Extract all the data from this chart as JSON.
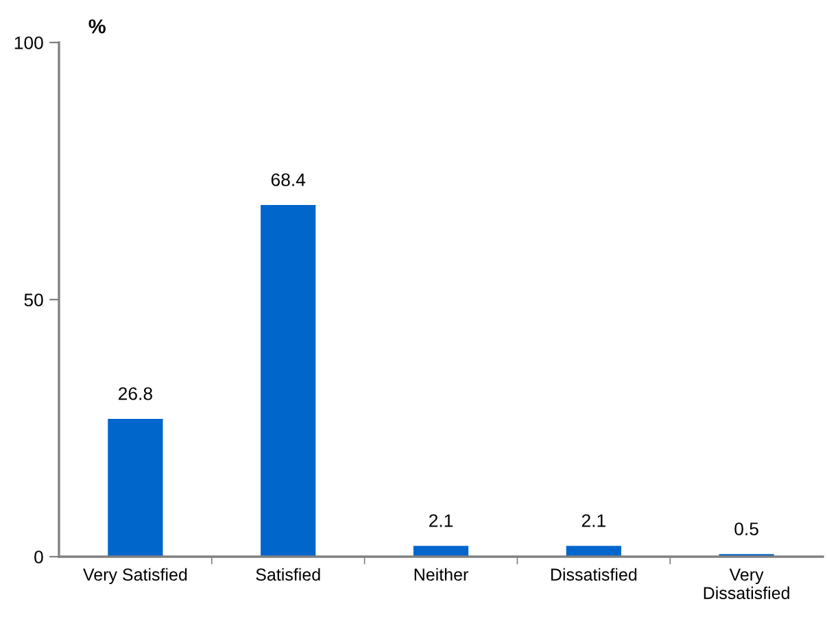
{
  "chart_data": {
    "type": "bar",
    "ylabel": "%",
    "categories": [
      "Very Satisfied",
      "Satisfied",
      "Neither",
      "Dissatisfied",
      "Very\nDissatisfied"
    ],
    "values": [
      26.8,
      68.4,
      2.1,
      2.1,
      0.5
    ],
    "color": "#0066cc",
    "ylim": [
      0,
      100
    ],
    "yticks": [
      0,
      50,
      100
    ],
    "data_labels": true,
    "grid": false,
    "legend": false
  }
}
